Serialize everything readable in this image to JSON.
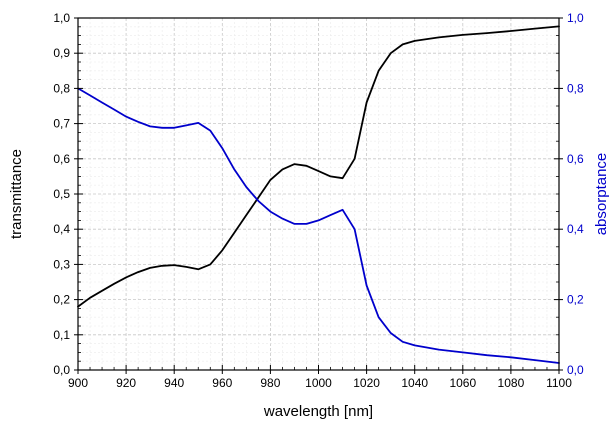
{
  "chart_data": {
    "type": "line",
    "xlabel": "wavelength [nm]",
    "ylabel_left": "transmittance",
    "ylabel_right": "absorptance",
    "xlim": [
      900,
      1100
    ],
    "ylim_left": [
      0.0,
      1.0
    ],
    "ylim_right": [
      0.0,
      1.0
    ],
    "x_ticks": [
      "900",
      "920",
      "940",
      "960",
      "980",
      "1000",
      "1020",
      "1040",
      "1060",
      "1080",
      "1100"
    ],
    "y_left_ticks": [
      "0,0",
      "0,1",
      "0,2",
      "0,3",
      "0,4",
      "0,5",
      "0,6",
      "0,7",
      "0,8",
      "0,9",
      "1,0"
    ],
    "y_right_ticks": [
      "0,0",
      "0,2",
      "0,4",
      "0,6",
      "0,8",
      "1,0"
    ],
    "grid": true,
    "series": [
      {
        "color": "#000000",
        "axis": "left",
        "x": [
          900,
          905,
          910,
          915,
          920,
          925,
          930,
          935,
          940,
          945,
          950,
          955,
          960,
          965,
          970,
          975,
          980,
          985,
          990,
          995,
          1000,
          1005,
          1010,
          1015,
          1020,
          1025,
          1030,
          1035,
          1040,
          1050,
          1060,
          1070,
          1080,
          1090,
          1100
        ],
        "values": [
          0.18,
          0.205,
          0.225,
          0.245,
          0.263,
          0.278,
          0.29,
          0.296,
          0.298,
          0.293,
          0.286,
          0.3,
          0.34,
          0.39,
          0.44,
          0.49,
          0.54,
          0.57,
          0.585,
          0.58,
          0.565,
          0.55,
          0.545,
          0.6,
          0.76,
          0.85,
          0.9,
          0.925,
          0.935,
          0.945,
          0.952,
          0.957,
          0.963,
          0.97,
          0.976
        ]
      },
      {
        "color": "#0000cc",
        "axis": "right",
        "x": [
          900,
          905,
          910,
          915,
          920,
          925,
          930,
          935,
          940,
          945,
          950,
          955,
          960,
          965,
          970,
          975,
          980,
          985,
          990,
          995,
          1000,
          1005,
          1010,
          1015,
          1020,
          1025,
          1030,
          1035,
          1040,
          1050,
          1060,
          1070,
          1080,
          1090,
          1100
        ],
        "values": [
          0.8,
          0.78,
          0.76,
          0.74,
          0.72,
          0.705,
          0.692,
          0.688,
          0.688,
          0.695,
          0.702,
          0.68,
          0.63,
          0.57,
          0.52,
          0.48,
          0.45,
          0.43,
          0.415,
          0.415,
          0.425,
          0.44,
          0.455,
          0.4,
          0.24,
          0.15,
          0.105,
          0.08,
          0.07,
          0.058,
          0.05,
          0.042,
          0.036,
          0.028,
          0.02
        ]
      }
    ]
  }
}
